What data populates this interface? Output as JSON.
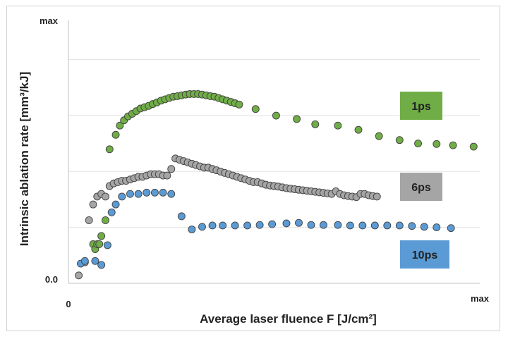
{
  "chart_data": {
    "type": "scatter",
    "title": "",
    "xlabel": "Average laser fluence F [J/cm²]",
    "ylabel": "Intrinsic ablation rate [mm³/kJ]",
    "xlim": [
      0,
      1
    ],
    "ylim": [
      0,
      1
    ],
    "x_ticks": [
      {
        "value": 0,
        "label": "0"
      },
      {
        "value": 1,
        "label": "max"
      }
    ],
    "y_ticks": [
      {
        "value": 0,
        "label": "0.0"
      },
      {
        "value": 1,
        "label": "max"
      }
    ],
    "grid": "horizontal",
    "legend_placement": "right",
    "series": [
      {
        "name": "1ps",
        "color": "#70ad47",
        "x": [
          0.06,
          0.065,
          0.07,
          0.075,
          0.08,
          0.09,
          0.1,
          0.115,
          0.125,
          0.135,
          0.145,
          0.155,
          0.165,
          0.175,
          0.185,
          0.195,
          0.205,
          0.215,
          0.225,
          0.235,
          0.245,
          0.255,
          0.265,
          0.275,
          0.285,
          0.295,
          0.305,
          0.315,
          0.325,
          0.335,
          0.345,
          0.355,
          0.365,
          0.375,
          0.385,
          0.395,
          0.405,
          0.415,
          0.455,
          0.505,
          0.555,
          0.6,
          0.655,
          0.705,
          0.755,
          0.805,
          0.85,
          0.895,
          0.935,
          0.985
        ],
        "y": [
          0.149,
          0.13,
          0.149,
          0.149,
          0.18,
          0.24,
          0.51,
          0.565,
          0.6,
          0.62,
          0.635,
          0.645,
          0.655,
          0.665,
          0.67,
          0.675,
          0.682,
          0.688,
          0.695,
          0.7,
          0.705,
          0.71,
          0.712,
          0.715,
          0.718,
          0.72,
          0.72,
          0.72,
          0.718,
          0.715,
          0.712,
          0.71,
          0.705,
          0.7,
          0.695,
          0.69,
          0.685,
          0.68,
          0.663,
          0.638,
          0.625,
          0.605,
          0.6,
          0.584,
          0.56,
          0.545,
          0.532,
          0.53,
          0.525,
          0.52
        ]
      },
      {
        "name": "6ps",
        "color": "#a5a5a5",
        "x": [
          0.025,
          0.04,
          0.05,
          0.06,
          0.07,
          0.08,
          0.09,
          0.1,
          0.11,
          0.12,
          0.13,
          0.14,
          0.15,
          0.16,
          0.17,
          0.18,
          0.19,
          0.2,
          0.21,
          0.22,
          0.23,
          0.24,
          0.25,
          0.26,
          0.27,
          0.28,
          0.29,
          0.3,
          0.31,
          0.32,
          0.33,
          0.34,
          0.35,
          0.36,
          0.37,
          0.38,
          0.39,
          0.4,
          0.41,
          0.42,
          0.43,
          0.44,
          0.45,
          0.46,
          0.47,
          0.48,
          0.49,
          0.5,
          0.51,
          0.52,
          0.53,
          0.54,
          0.55,
          0.56,
          0.57,
          0.58,
          0.59,
          0.6,
          0.61,
          0.62,
          0.63,
          0.64,
          0.65,
          0.66,
          0.67,
          0.68,
          0.69,
          0.7,
          0.71,
          0.72,
          0.73,
          0.74,
          0.75
        ],
        "y": [
          0.03,
          0.08,
          0.24,
          0.3,
          0.33,
          0.34,
          0.33,
          0.37,
          0.38,
          0.385,
          0.39,
          0.39,
          0.395,
          0.4,
          0.405,
          0.405,
          0.41,
          0.415,
          0.415,
          0.415,
          0.41,
          0.41,
          0.435,
          0.475,
          0.47,
          0.465,
          0.46,
          0.455,
          0.45,
          0.445,
          0.44,
          0.44,
          0.435,
          0.43,
          0.425,
          0.42,
          0.415,
          0.41,
          0.405,
          0.4,
          0.395,
          0.39,
          0.385,
          0.385,
          0.38,
          0.375,
          0.372,
          0.37,
          0.368,
          0.365,
          0.362,
          0.36,
          0.358,
          0.356,
          0.354,
          0.352,
          0.35,
          0.348,
          0.346,
          0.344,
          0.342,
          0.34,
          0.35,
          0.34,
          0.335,
          0.332,
          0.33,
          0.328,
          0.34,
          0.34,
          0.335,
          0.332,
          0.33
        ]
      },
      {
        "name": "10ps",
        "color": "#5b9bd5",
        "x": [
          0.03,
          0.04,
          0.065,
          0.08,
          0.095,
          0.105,
          0.115,
          0.13,
          0.15,
          0.17,
          0.19,
          0.21,
          0.23,
          0.25,
          0.275,
          0.3,
          0.325,
          0.35,
          0.375,
          0.405,
          0.435,
          0.465,
          0.495,
          0.53,
          0.56,
          0.59,
          0.62,
          0.655,
          0.685,
          0.715,
          0.745,
          0.775,
          0.805,
          0.835,
          0.865,
          0.895,
          0.93
        ],
        "y": [
          0.075,
          0.085,
          0.085,
          0.07,
          0.145,
          0.27,
          0.3,
          0.33,
          0.34,
          0.34,
          0.345,
          0.345,
          0.345,
          0.34,
          0.255,
          0.205,
          0.215,
          0.22,
          0.22,
          0.22,
          0.22,
          0.222,
          0.225,
          0.228,
          0.23,
          0.222,
          0.222,
          0.222,
          0.22,
          0.22,
          0.22,
          0.22,
          0.22,
          0.218,
          0.215,
          0.213,
          0.21
        ]
      }
    ]
  }
}
